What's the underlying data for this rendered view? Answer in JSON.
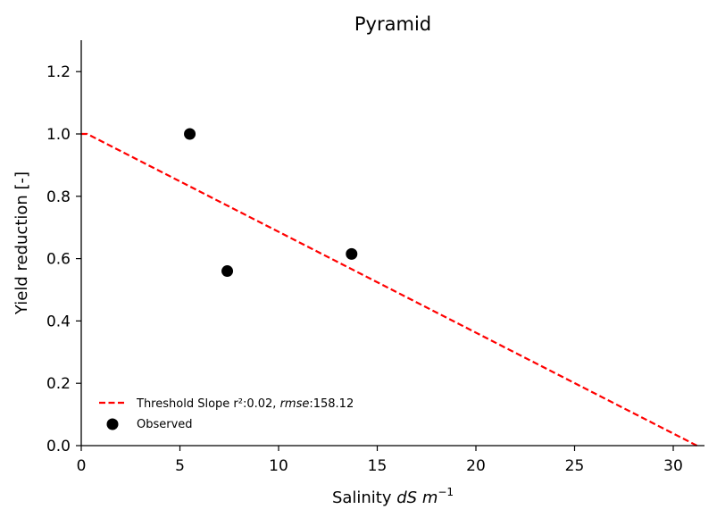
{
  "chart_data": {
    "type": "scatter",
    "title": "Pyramid",
    "xlabel_prefix": "Salinity ",
    "xlabel_math": "dS m",
    "xlabel_sup": "−1",
    "ylabel": "Yield reduction [-]",
    "xlim": [
      0,
      31.5
    ],
    "ylim": [
      0,
      1.3
    ],
    "xticks": [
      0,
      5,
      10,
      15,
      20,
      25,
      30
    ],
    "yticks": [
      0.0,
      0.2,
      0.4,
      0.6,
      0.8,
      1.0,
      1.2
    ],
    "xtick_labels": [
      "0",
      "5",
      "10",
      "15",
      "20",
      "25",
      "30"
    ],
    "ytick_labels": [
      "0.0",
      "0.2",
      "0.4",
      "0.6",
      "0.8",
      "1.0",
      "1.2"
    ],
    "grid": false,
    "legend_position": "lower-left",
    "series": [
      {
        "name": "Threshold Slope",
        "type": "line",
        "style": "dashed",
        "color": "#ff0000",
        "x": [
          0,
          0.3,
          31.2
        ],
        "y": [
          1.0,
          1.0,
          0.0
        ]
      },
      {
        "name": "Observed",
        "type": "scatter",
        "color": "#000000",
        "x": [
          5.5,
          7.4,
          13.7
        ],
        "y": [
          1.0,
          0.56,
          0.615
        ]
      }
    ],
    "legend": {
      "line_label": "Threshold Slope",
      "r2_label": " r²:0.02, ",
      "rmse_name": "rmse",
      "rmse_value": ":158.12",
      "scatter_label": "Observed"
    }
  }
}
